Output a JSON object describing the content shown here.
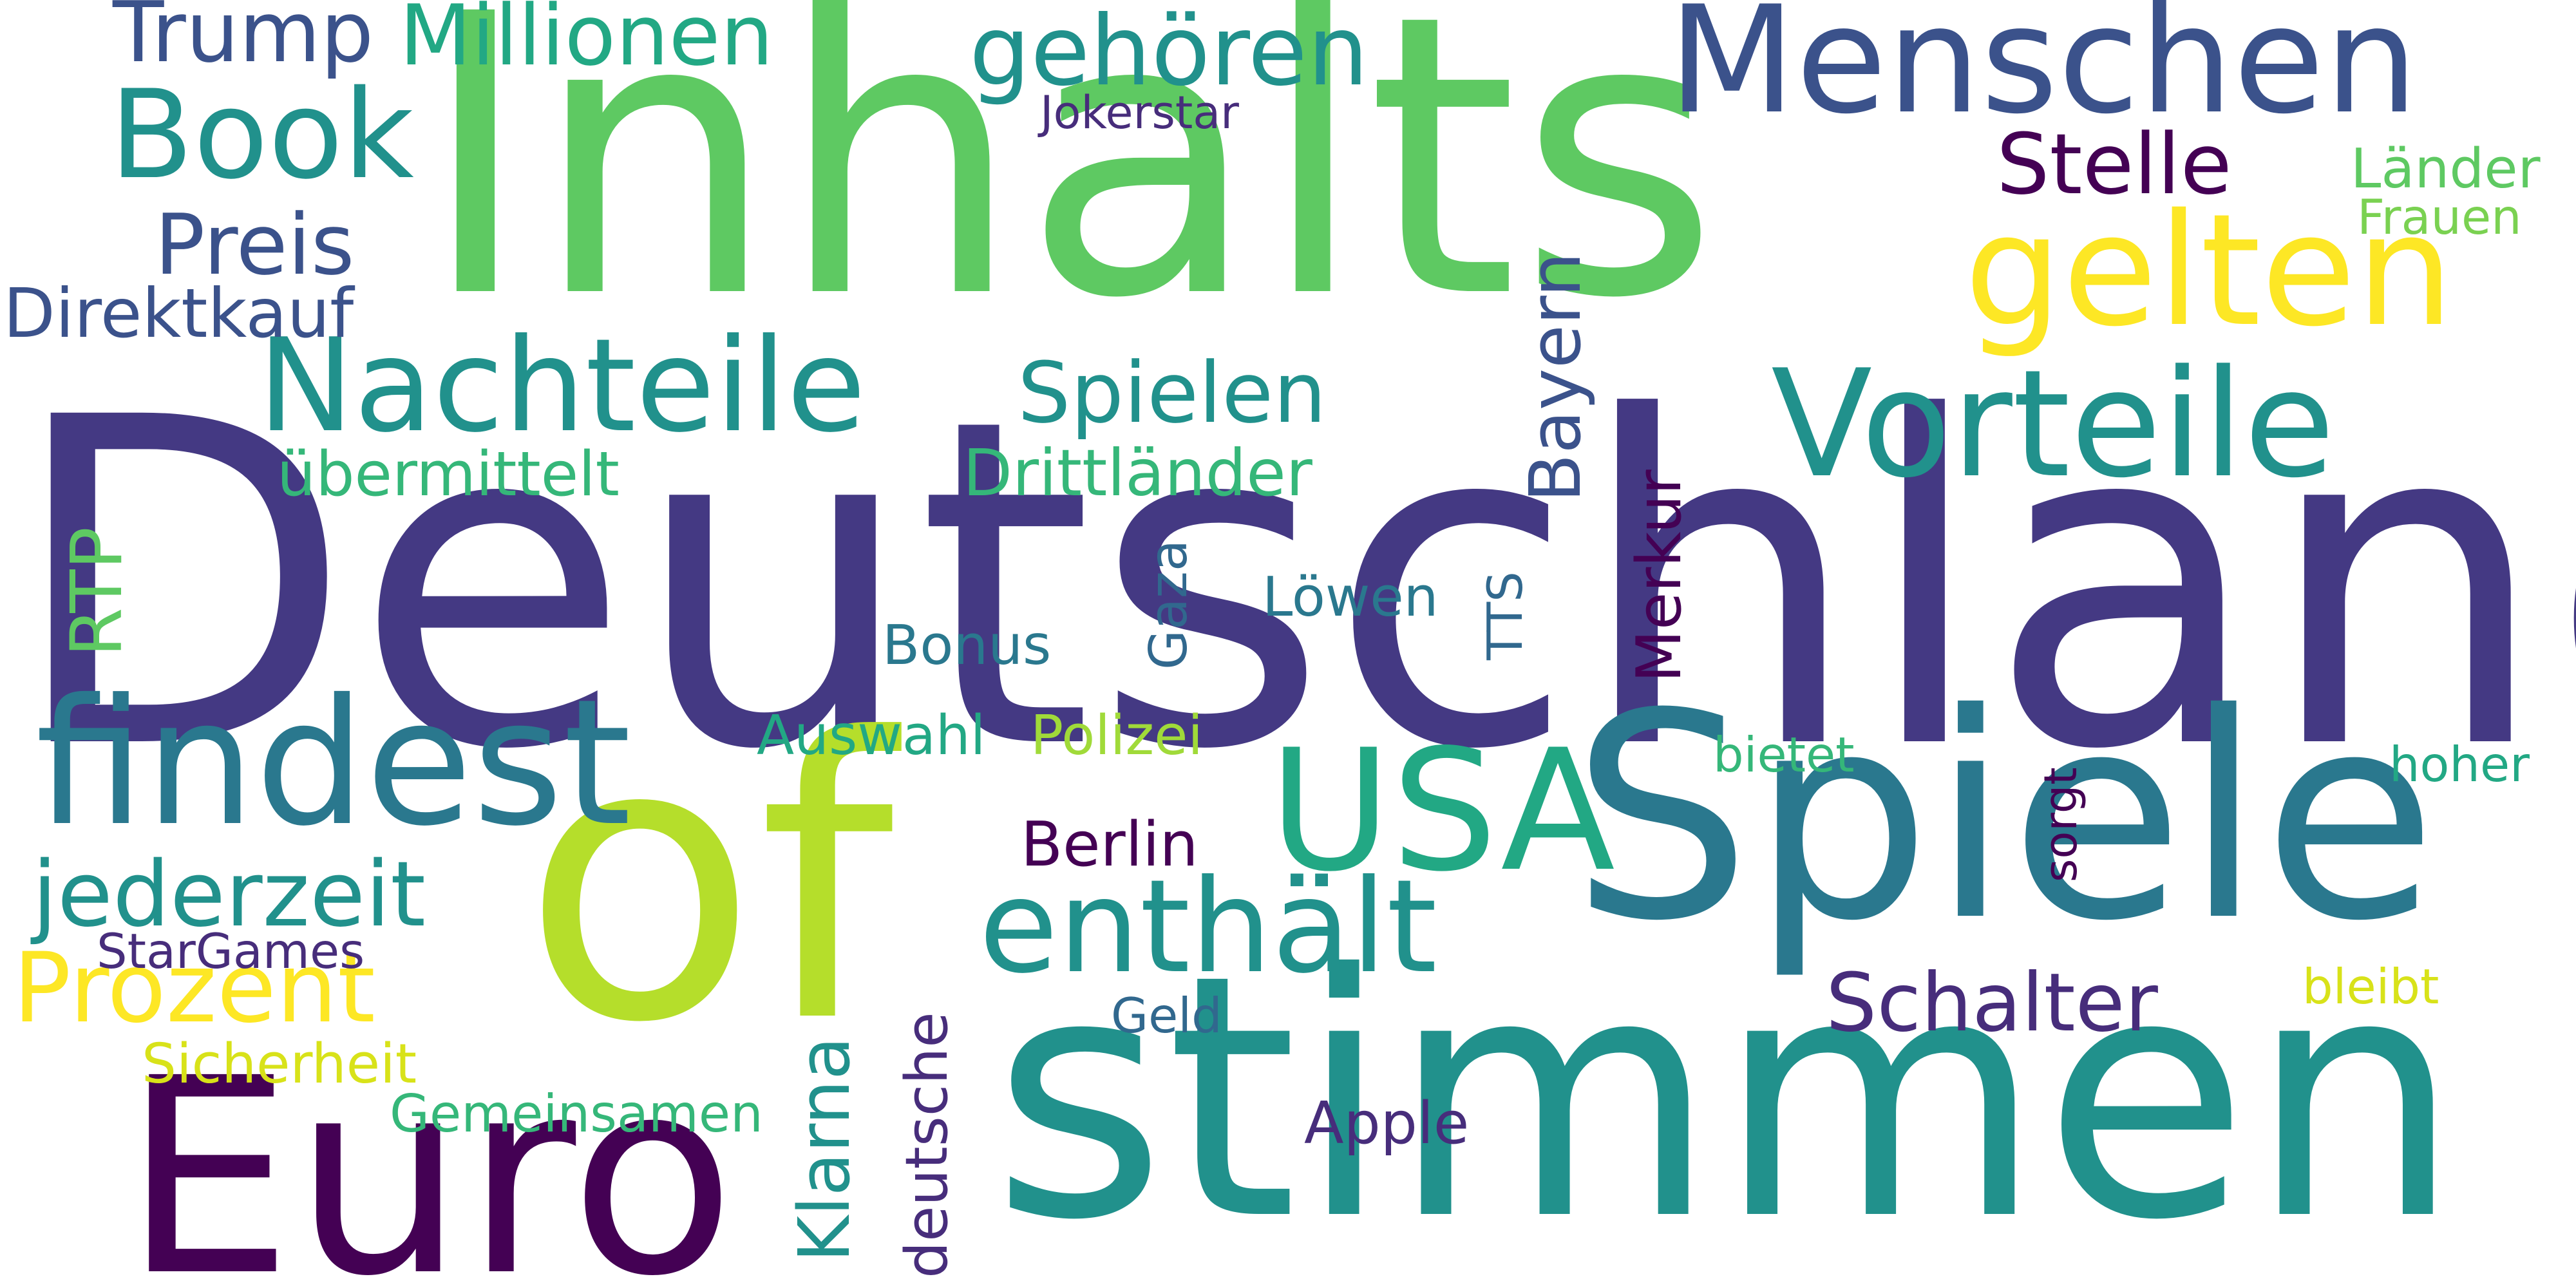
{
  "words": [
    {
      "text": "Deutschland",
      "color": "#443983"
    },
    {
      "text": "Inhalts",
      "color": "#5ec962"
    },
    {
      "text": "stimmen",
      "color": "#21918c"
    },
    {
      "text": "Spiele",
      "color": "#2a788e"
    },
    {
      "text": "of",
      "color": "#b5de2b"
    },
    {
      "text": "Euro",
      "color": "#440154"
    },
    {
      "text": "Menschen",
      "color": "#3b528b"
    },
    {
      "text": "findest",
      "color": "#2a788e"
    },
    {
      "text": "Vorteile",
      "color": "#21918c"
    },
    {
      "text": "gelten",
      "color": "#fde725"
    },
    {
      "text": "Nachteile",
      "color": "#21918c"
    },
    {
      "text": "USA",
      "color": "#22a884"
    },
    {
      "text": "enthält",
      "color": "#21918c"
    },
    {
      "text": "Book",
      "color": "#21918c"
    },
    {
      "text": "Prozent",
      "color": "#fde725"
    },
    {
      "text": "jederzeit",
      "color": "#21918c"
    },
    {
      "text": "gehören",
      "color": "#21918c"
    },
    {
      "text": "Millionen",
      "color": "#22a884"
    },
    {
      "text": "Trump",
      "color": "#3b528b"
    },
    {
      "text": "Stelle",
      "color": "#440154"
    },
    {
      "text": "Spielen",
      "color": "#21918c"
    },
    {
      "text": "Preis",
      "color": "#3b528b"
    },
    {
      "text": "Schalter",
      "color": "#472d7b"
    },
    {
      "text": "Direktkauf",
      "color": "#3b528b"
    },
    {
      "text": "Drittländer",
      "color": "#35b779"
    },
    {
      "text": "übermittelt",
      "color": "#35b779"
    },
    {
      "text": "Berlin",
      "color": "#440154"
    },
    {
      "text": "Länder",
      "color": "#5ec962"
    },
    {
      "text": "Frauen",
      "color": "#7ad151"
    },
    {
      "text": "Löwen",
      "color": "#2a788e"
    },
    {
      "text": "Bonus",
      "color": "#2a788e"
    },
    {
      "text": "Auswahl",
      "color": "#22a884"
    },
    {
      "text": "Polizei",
      "color": "#a0da39"
    },
    {
      "text": "Apple",
      "color": "#472d7b"
    },
    {
      "text": "Gemeinsamen",
      "color": "#35b779"
    },
    {
      "text": "Sicherheit",
      "color": "#d8e219"
    },
    {
      "text": "StarGames",
      "color": "#472d7b"
    },
    {
      "text": "Jokerstar",
      "color": "#472d7b"
    },
    {
      "text": "bietet",
      "color": "#35b779"
    },
    {
      "text": "hoher",
      "color": "#22a884"
    },
    {
      "text": "bleibt",
      "color": "#d8e219"
    },
    {
      "text": "Geld",
      "color": "#31688e"
    },
    {
      "text": "Bayern",
      "color": "#3b528b"
    },
    {
      "text": "RTP",
      "color": "#5ec962"
    },
    {
      "text": "Merkur",
      "color": "#440154"
    },
    {
      "text": "Gaza",
      "color": "#31688e"
    },
    {
      "text": "TTS",
      "color": "#31688e"
    },
    {
      "text": "Klarna",
      "color": "#21918c"
    },
    {
      "text": "deutsche",
      "color": "#472d7b"
    },
    {
      "text": "sorgt",
      "color": "#440154"
    }
  ]
}
